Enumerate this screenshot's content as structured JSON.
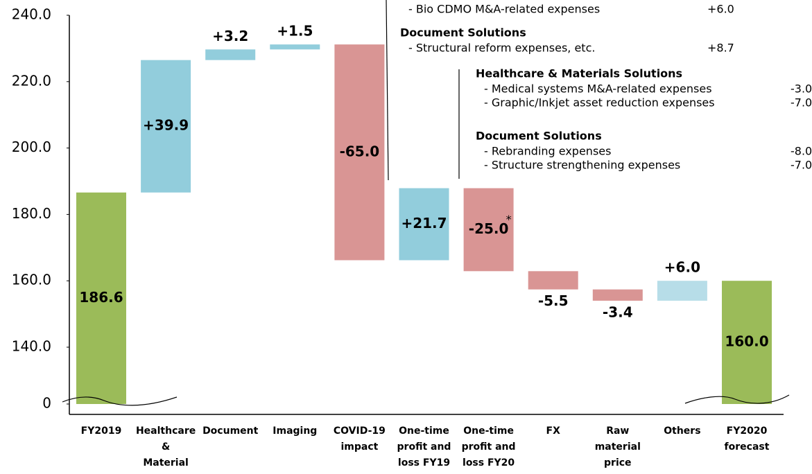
{
  "chart_data": {
    "type": "waterfall",
    "categories": [
      "FY2019",
      "Healthcare\n&\nMaterial",
      "Document",
      "Imaging",
      "COVID-19\nimpact",
      "One-time\nprofit and\nloss FY19",
      "One-time\nprofit and\nloss FY20",
      "FX",
      "Raw\nmaterial\nprice",
      "Others",
      "FY2020\nforecast"
    ],
    "values": [
      186.6,
      39.9,
      3.2,
      1.5,
      -65.0,
      21.7,
      -25.0,
      -5.5,
      -3.4,
      6.0,
      160.0
    ],
    "value_labels": [
      "186.6",
      "+39.9",
      "+3.2",
      "+1.5",
      "-65.0",
      "+21.7",
      "-25.0",
      "-5.5",
      "-3.4",
      "+6.0",
      "160.0"
    ],
    "value_label_notes": [
      null,
      null,
      null,
      null,
      null,
      null,
      "*",
      null,
      null,
      null,
      null
    ],
    "measures": [
      "total",
      "relative",
      "relative",
      "relative",
      "relative",
      "relative",
      "relative",
      "relative",
      "relative",
      "relative",
      "total"
    ],
    "colors": [
      "#9bbb59",
      "#92cddc",
      "#92cddc",
      "#92cddc",
      "#d99594",
      "#92cddc",
      "#d99594",
      "#d99594",
      "#d99594",
      "#b7dde8",
      "#9bbb59"
    ],
    "ylim": [
      0,
      240
    ],
    "yticks": [
      0,
      {
        "value": 140,
        "label": "140.0"
      },
      {
        "value": 160,
        "label": "160.0"
      },
      {
        "value": 180,
        "label": "180.0"
      },
      {
        "value": 200,
        "label": "200.0"
      },
      {
        "value": 220,
        "label": "220.0"
      },
      {
        "value": 240,
        "label": "240.0"
      }
    ],
    "y_axis_break": true,
    "annotations": [
      {
        "heading": null,
        "items": [
          {
            "text": "- Bio CDMO M&A-related expenses",
            "value": "+6.0"
          }
        ]
      },
      {
        "heading": "Document Solutions",
        "items": [
          {
            "text": "- Structural reform expenses, etc.",
            "value": "+8.7"
          }
        ]
      },
      {
        "heading": "Healthcare & Materials Solutions",
        "items": [
          {
            "text": "- Medical systems M&A-related expenses",
            "value": "-3.0"
          },
          {
            "text": "- Graphic/Inkjet  asset reduction expenses",
            "value": "-7.0"
          }
        ]
      },
      {
        "heading": "Document Solutions",
        "items": [
          {
            "text": "- Rebranding expenses",
            "value": "-8.0"
          },
          {
            "text": "- Structure strengthening expenses",
            "value": "-7.0"
          }
        ]
      }
    ]
  }
}
